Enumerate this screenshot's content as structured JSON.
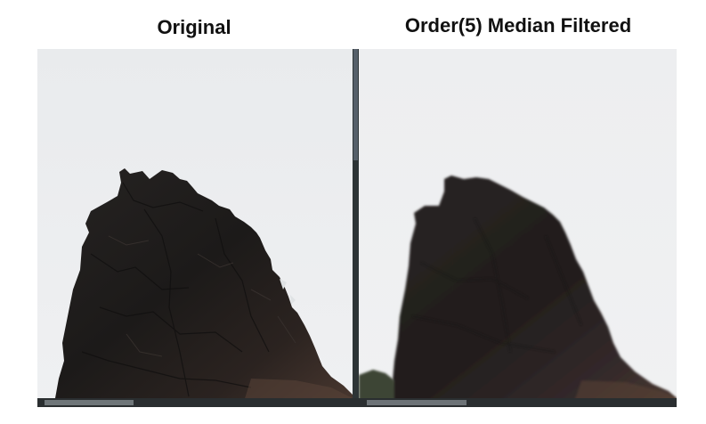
{
  "titles": {
    "left": "Original",
    "right": "Order(5) Median Filtered"
  },
  "colors": {
    "sky": "#eceef0",
    "rock_dark": "#1e1c1b",
    "rock_mid": "#2e2826",
    "rock_brown": "#4a3a33",
    "divider": "#2d3436",
    "ground_green": "#5c6b3c"
  }
}
